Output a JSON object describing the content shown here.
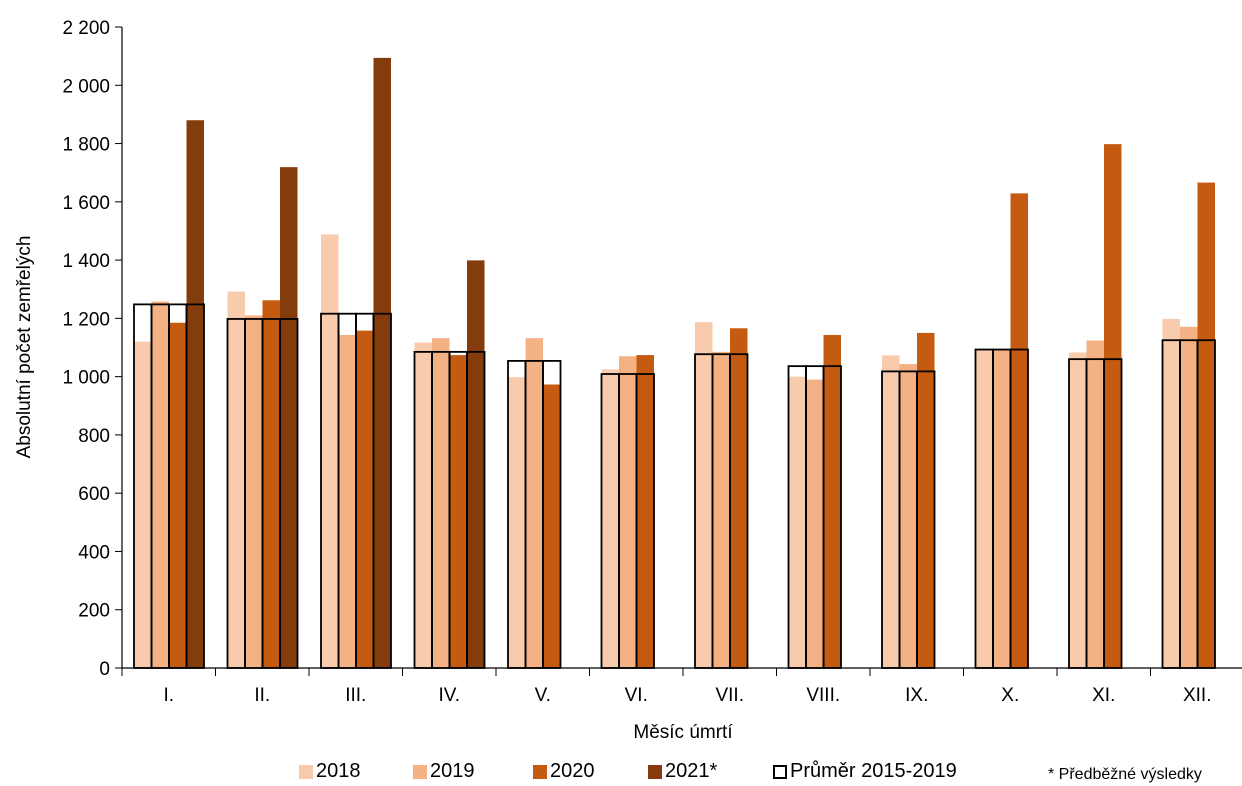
{
  "chart_data": {
    "type": "bar",
    "xlabel": "Měsíc úmrtí",
    "ylabel": "Absolutní počet zemřelých",
    "ylim": [
      0,
      2200
    ],
    "yticks": [
      0,
      200,
      400,
      600,
      800,
      1000,
      1200,
      1400,
      1600,
      1800,
      2000,
      2200
    ],
    "ytick_labels": [
      "0",
      "200",
      "400",
      "600",
      "800",
      "1 000",
      "1 200",
      "1 400",
      "1 600",
      "1 800",
      "2 000",
      "2 200"
    ],
    "categories": [
      "I.",
      "II.",
      "III.",
      "IV.",
      "V.",
      "VI.",
      "VII.",
      "VIII.",
      "IX.",
      "X.",
      "XI.",
      "XII."
    ],
    "series": [
      {
        "name": "2018",
        "color": "#f8cbad",
        "values": [
          1120,
          1292,
          1488,
          1117,
          998,
          1025,
          1187,
          1000,
          1073,
          1093,
          1083,
          1198
        ]
      },
      {
        "name": "2019",
        "color": "#f4b183",
        "values": [
          1258,
          1210,
          1143,
          1132,
          1132,
          1070,
          1085,
          990,
          1043,
          1093,
          1124,
          1171
        ]
      },
      {
        "name": "2020",
        "color": "#c55a11",
        "values": [
          1185,
          1262,
          1158,
          1074,
          973,
          1074,
          1166,
          1143,
          1150,
          1629,
          1798,
          1666
        ]
      },
      {
        "name": "2021*",
        "color": "#843c0c",
        "values": [
          1880,
          1719,
          2094,
          1399,
          null,
          null,
          null,
          null,
          null,
          null,
          null,
          null
        ]
      }
    ],
    "average": {
      "name": "Průměr 2015-2019",
      "values": [
        1248,
        1198,
        1216,
        1085,
        1054,
        1009,
        1077,
        1036,
        1018,
        1093,
        1060,
        1125
      ]
    },
    "grid": false,
    "legend": "bottom",
    "note": "* Předběžné výsledky"
  }
}
